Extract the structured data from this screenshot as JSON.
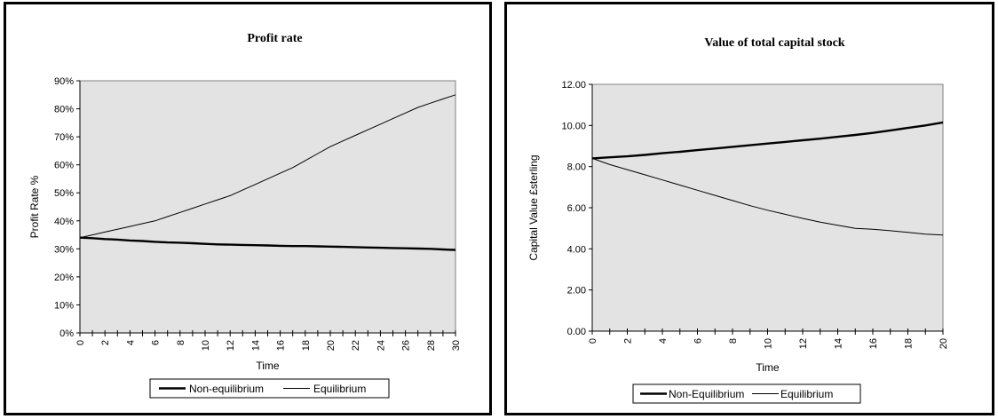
{
  "chart_data": [
    {
      "type": "line",
      "title": "Profit rate",
      "xlabel": "Time",
      "ylabel": "Profit Rate %",
      "xlim": [
        0,
        30
      ],
      "ylim": [
        0,
        90
      ],
      "x_ticks": [
        "0",
        "2",
        "4",
        "6",
        "8",
        "10",
        "12",
        "14",
        "16",
        "18",
        "20",
        "22",
        "24",
        "26",
        "28",
        "30"
      ],
      "y_ticks": [
        "0%",
        "10%",
        "20%",
        "30%",
        "40%",
        "50%",
        "60%",
        "70%",
        "80%",
        "90%"
      ],
      "y_tick_values": [
        0,
        10,
        20,
        30,
        40,
        50,
        60,
        70,
        80,
        90
      ],
      "grid": false,
      "legend_position": "bottom",
      "x": [
        0,
        1,
        2,
        3,
        4,
        5,
        6,
        7,
        8,
        9,
        10,
        11,
        12,
        13,
        14,
        15,
        16,
        17,
        18,
        19,
        20,
        21,
        22,
        23,
        24,
        25,
        26,
        27,
        28,
        29,
        30
      ],
      "series": [
        {
          "name": "Non-equilibrium",
          "weight": "thick",
          "values": [
            34,
            33.8,
            33.5,
            33.3,
            33,
            32.8,
            32.5,
            32.3,
            32.2,
            32,
            31.8,
            31.6,
            31.5,
            31.4,
            31.3,
            31.2,
            31.1,
            31,
            31,
            30.9,
            30.8,
            30.7,
            30.6,
            30.5,
            30.4,
            30.3,
            30.2,
            30.1,
            30,
            29.8,
            29.6
          ]
        },
        {
          "name": "Equilibrium",
          "weight": "thin",
          "values": [
            34,
            35,
            36,
            37,
            38,
            39,
            40,
            41.5,
            43,
            44.5,
            46,
            47.5,
            49,
            51,
            53,
            55,
            57,
            59,
            61.5,
            64,
            66.5,
            68.5,
            70.5,
            72.5,
            74.5,
            76.5,
            78.5,
            80.5,
            82,
            83.5,
            85
          ]
        }
      ]
    },
    {
      "type": "line",
      "title": "Value of total capital stock",
      "xlabel": "Time",
      "ylabel": "Capital Value £sterling",
      "xlim": [
        0,
        20
      ],
      "ylim": [
        0,
        12
      ],
      "x_ticks": [
        "0",
        "2",
        "4",
        "6",
        "8",
        "10",
        "12",
        "14",
        "16",
        "18",
        "20"
      ],
      "y_ticks": [
        "0.00",
        "2.00",
        "4.00",
        "6.00",
        "8.00",
        "10.00",
        "12.00"
      ],
      "y_tick_values": [
        0,
        2,
        4,
        6,
        8,
        10,
        12
      ],
      "grid": false,
      "legend_position": "bottom",
      "x": [
        0,
        1,
        2,
        3,
        4,
        5,
        6,
        7,
        8,
        9,
        10,
        11,
        12,
        13,
        14,
        15,
        16,
        17,
        18,
        19,
        20
      ],
      "series": [
        {
          "name": "Non-Equilibrium",
          "weight": "thick",
          "values": [
            8.4,
            8.45,
            8.5,
            8.57,
            8.65,
            8.72,
            8.8,
            8.88,
            8.96,
            9.04,
            9.12,
            9.2,
            9.28,
            9.36,
            9.45,
            9.54,
            9.64,
            9.76,
            9.88,
            10,
            10.15
          ]
        },
        {
          "name": "Equilibrium",
          "weight": "thin",
          "values": [
            8.4,
            8.1,
            7.85,
            7.6,
            7.35,
            7.1,
            6.85,
            6.6,
            6.35,
            6.1,
            5.88,
            5.68,
            5.48,
            5.3,
            5.15,
            5.0,
            4.95,
            4.88,
            4.8,
            4.72,
            4.67
          ]
        }
      ]
    }
  ]
}
